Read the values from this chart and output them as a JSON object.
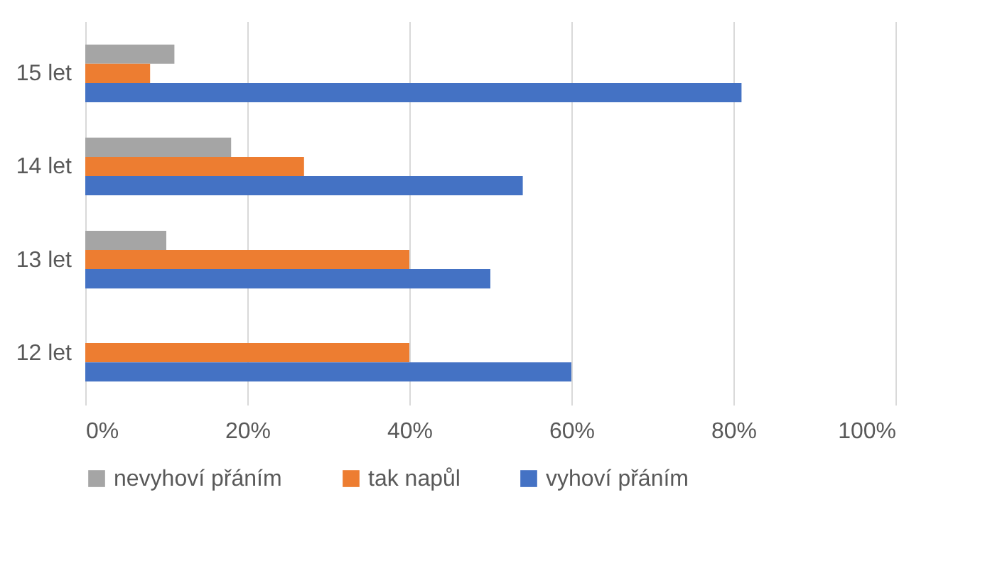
{
  "chart_data": {
    "type": "bar",
    "orientation": "horizontal",
    "categories": [
      "15 let",
      "14 let",
      "13 let",
      "12 let"
    ],
    "series": [
      {
        "name": "nevyhoví přáním",
        "color": "#a5a5a5",
        "values": [
          11,
          18,
          10,
          0
        ]
      },
      {
        "name": "tak napůl",
        "color": "#ed7d31",
        "values": [
          8,
          27,
          40,
          40
        ]
      },
      {
        "name": "vyhoví přáním",
        "color": "#4472c4",
        "values": [
          81,
          54,
          50,
          60
        ]
      }
    ],
    "xlim": [
      0,
      100
    ],
    "xticks": [
      {
        "value": 0,
        "label": "0%"
      },
      {
        "value": 20,
        "label": "20%"
      },
      {
        "value": 40,
        "label": "40%"
      },
      {
        "value": 60,
        "label": "60%"
      },
      {
        "value": 80,
        "label": "80%"
      },
      {
        "value": 100,
        "label": "100%"
      }
    ],
    "grid": "x",
    "legend": "bottom"
  }
}
